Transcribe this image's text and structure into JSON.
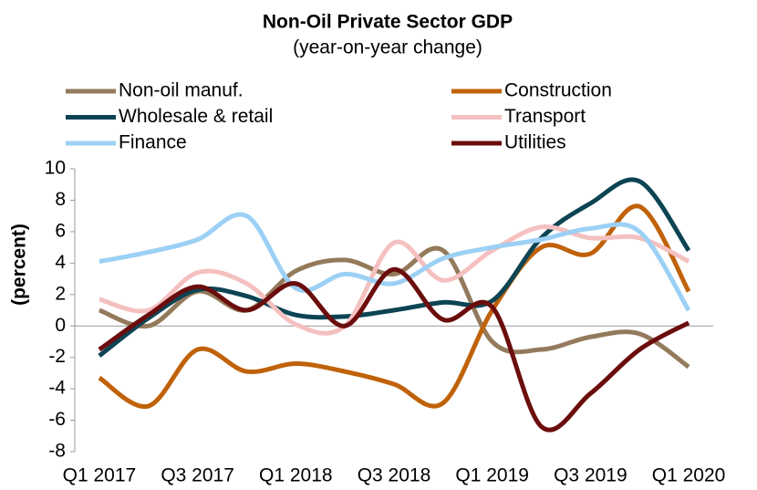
{
  "chart_data": {
    "type": "line",
    "title": "Non-Oil Private Sector GDP",
    "subtitle": "(year-on-year change)",
    "y_label": "(percent)",
    "categories": [
      "Q1 2017",
      null,
      "Q3 2017",
      null,
      "Q1 2018",
      null,
      "Q3 2018",
      null,
      "Q1 2019",
      null,
      "Q3 2019",
      null,
      "Q1 2020"
    ],
    "series": [
      {
        "name": "Non-oil manuf.",
        "color": "#937a5b",
        "values": [
          1.0,
          0.0,
          2.2,
          1.0,
          3.5,
          4.2,
          3.3,
          4.8,
          -1.0,
          -1.5,
          -0.7,
          -0.5,
          -2.6
        ]
      },
      {
        "name": "Construction",
        "color": "#c0620a",
        "values": [
          -3.3,
          -5.1,
          -1.5,
          -2.9,
          -2.4,
          -2.9,
          -3.7,
          -4.9,
          1.0,
          5.0,
          4.6,
          7.6,
          2.2
        ]
      },
      {
        "name": "Wholesale & retail",
        "color": "#0d4454",
        "values": [
          -1.9,
          0.5,
          2.3,
          1.9,
          0.7,
          0.6,
          1.0,
          1.5,
          1.6,
          5.6,
          7.8,
          9.2,
          4.8
        ]
      },
      {
        "name": "Transport",
        "color": "#f5c0c0",
        "values": [
          1.7,
          1.0,
          3.4,
          2.7,
          0.1,
          0.0,
          5.3,
          2.9,
          4.8,
          6.3,
          5.6,
          5.6,
          4.1
        ]
      },
      {
        "name": "Finance",
        "color": "#9cd0f5",
        "values": [
          4.1,
          4.7,
          5.5,
          7.0,
          2.4,
          3.3,
          2.7,
          4.3,
          5.0,
          5.5,
          6.2,
          6.0,
          1.0
        ]
      },
      {
        "name": "Utilities",
        "color": "#6b0d0d",
        "values": [
          -1.5,
          0.7,
          2.5,
          1.0,
          2.7,
          0.0,
          3.6,
          0.4,
          1.2,
          -6.4,
          -4.3,
          -1.5,
          0.2
        ]
      }
    ],
    "ylim": [
      -8,
      10
    ],
    "yticks": [
      -8,
      -6,
      -4,
      -2,
      0,
      2,
      4,
      6,
      8,
      10
    ],
    "grid": false
  }
}
